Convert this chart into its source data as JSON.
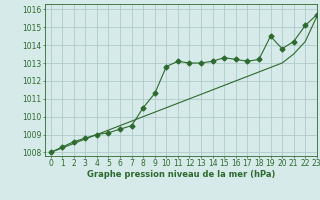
{
  "xlabel": "Graphe pression niveau de la mer (hPa)",
  "xlim": [
    -0.5,
    23
  ],
  "ylim": [
    1007.8,
    1016.3
  ],
  "yticks": [
    1008,
    1009,
    1010,
    1011,
    1012,
    1013,
    1014,
    1015,
    1016
  ],
  "xticks": [
    0,
    1,
    2,
    3,
    4,
    5,
    6,
    7,
    8,
    9,
    10,
    11,
    12,
    13,
    14,
    15,
    16,
    17,
    18,
    19,
    20,
    21,
    22,
    23
  ],
  "bg_color": "#d6eaea",
  "grid_color": "#b0cccc",
  "line_color": "#2d6a2d",
  "data_x": [
    0,
    1,
    2,
    3,
    4,
    5,
    6,
    7,
    8,
    9,
    10,
    11,
    12,
    13,
    14,
    15,
    16,
    17,
    18,
    19,
    20,
    21,
    22,
    23
  ],
  "data_y1": [
    1008.0,
    1008.3,
    1008.6,
    1008.8,
    1009.0,
    1009.1,
    1009.3,
    1009.5,
    1010.5,
    1011.3,
    1012.8,
    1013.1,
    1013.0,
    1013.0,
    1013.1,
    1013.3,
    1013.2,
    1013.1,
    1013.2,
    1014.5,
    1013.8,
    1014.2,
    1015.1,
    1015.7
  ],
  "trend_y": [
    1008.0,
    1008.25,
    1008.5,
    1008.75,
    1009.0,
    1009.25,
    1009.5,
    1009.75,
    1010.0,
    1010.25,
    1010.5,
    1010.75,
    1011.0,
    1011.25,
    1011.5,
    1011.75,
    1012.0,
    1012.25,
    1012.5,
    1012.75,
    1013.0,
    1013.5,
    1014.2,
    1015.6
  ]
}
